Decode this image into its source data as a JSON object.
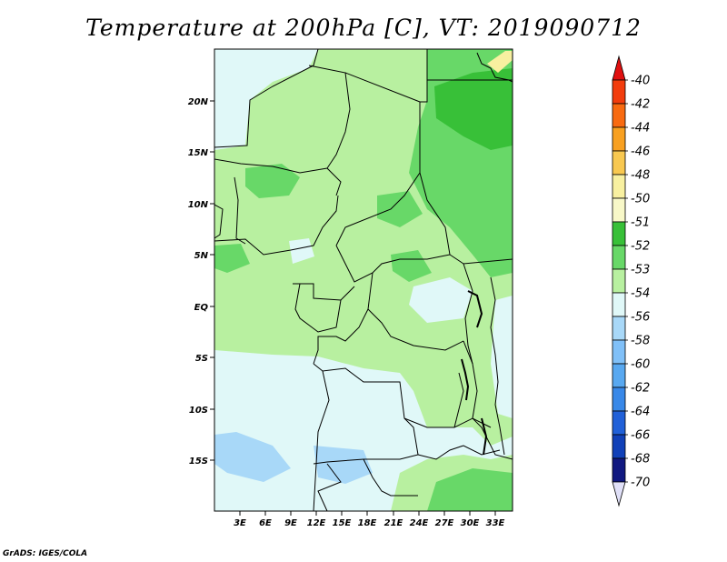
{
  "title": "Temperature at 200hPa [C], VT: 2019090712",
  "credit": "GrADS: IGES/COLA",
  "lat_labels": [
    "20N",
    "15N",
    "10N",
    "5N",
    "EQ",
    "5S",
    "10S",
    "15S"
  ],
  "lon_labels": [
    "3E",
    "6E",
    "9E",
    "12E",
    "15E",
    "18E",
    "21E",
    "24E",
    "27E",
    "30E",
    "33E"
  ],
  "colorbar": {
    "levels": [
      "-40",
      "-42",
      "-44",
      "-46",
      "-48",
      "-50",
      "-51",
      "-52",
      "-53",
      "-54",
      "-56",
      "-58",
      "-60",
      "-62",
      "-64",
      "-66",
      "-68",
      "-70"
    ],
    "colors": [
      "#e01010",
      "#f23c0c",
      "#f86a10",
      "#f8a020",
      "#f8c850",
      "#f8f0a0",
      "#f8f8c8",
      "#38c038",
      "#68d868",
      "#b8f0a0",
      "#e0f8f8",
      "#a8d8f8",
      "#80c0f8",
      "#58a8f0",
      "#3888e8",
      "#2060d8",
      "#1040b8",
      "#101880",
      "#e0e0f8"
    ]
  }
}
